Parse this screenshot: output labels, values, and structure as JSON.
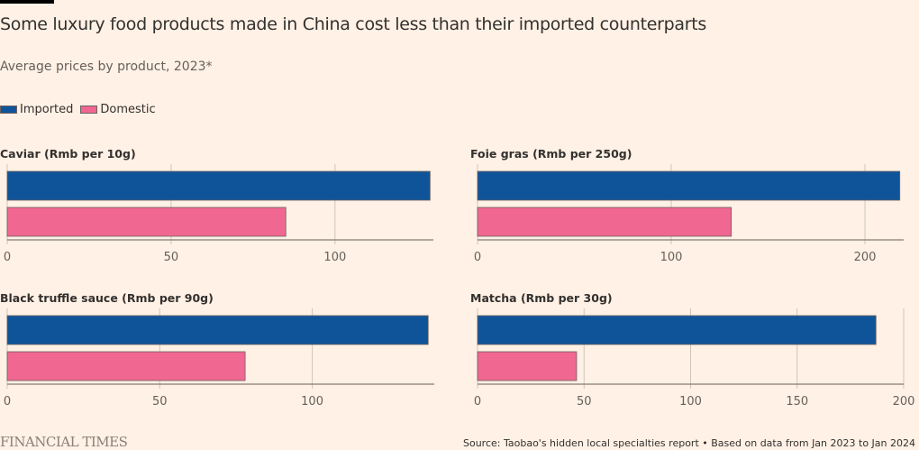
{
  "header": {
    "title": "Some luxury food products made in China cost less than their imported counterparts",
    "subtitle": "Average prices by product, 2023*"
  },
  "legend": [
    {
      "label": "Imported",
      "color": "#0f5499"
    },
    {
      "label": "Domestic",
      "color": "#f06791"
    }
  ],
  "footer": {
    "logo": "FINANCIAL TIMES",
    "source": "Source: Taobao's hidden local specialties report • Based on data from Jan 2023 to Jan 2024"
  },
  "chart_data": [
    {
      "type": "bar",
      "title": "Caviar (Rmb per 10g)",
      "categories": [
        "Imported",
        "Domestic"
      ],
      "series": [
        {
          "name": "Imported",
          "values": [
            129
          ]
        },
        {
          "name": "Domestic",
          "values": [
            85
          ]
        }
      ],
      "xlim": [
        0,
        130
      ],
      "ticks": [
        0,
        50,
        100
      ],
      "grid": true
    },
    {
      "type": "bar",
      "title": "Foie gras (Rmb per 250g)",
      "categories": [
        "Imported",
        "Domestic"
      ],
      "series": [
        {
          "name": "Imported",
          "values": [
            218
          ]
        },
        {
          "name": "Domestic",
          "values": [
            131
          ]
        }
      ],
      "xlim": [
        0,
        220
      ],
      "ticks": [
        0,
        100,
        200
      ],
      "grid": true
    },
    {
      "type": "bar",
      "title": "Black truffle sauce (Rmb per 90g)",
      "categories": [
        "Imported",
        "Domestic"
      ],
      "series": [
        {
          "name": "Imported",
          "values": [
            138
          ]
        },
        {
          "name": "Domestic",
          "values": [
            78
          ]
        }
      ],
      "xlim": [
        0,
        140
      ],
      "ticks": [
        0,
        50,
        100
      ],
      "grid": true
    },
    {
      "type": "bar",
      "title": "Matcha (Rmb per 30g)",
      "categories": [
        "Imported",
        "Domestic"
      ],
      "series": [
        {
          "name": "Imported",
          "values": [
            187
          ]
        },
        {
          "name": "Domestic",
          "values": [
            46.5
          ]
        }
      ],
      "xlim": [
        0,
        200
      ],
      "ticks": [
        0,
        50,
        100,
        150,
        200
      ],
      "grid": true
    }
  ]
}
